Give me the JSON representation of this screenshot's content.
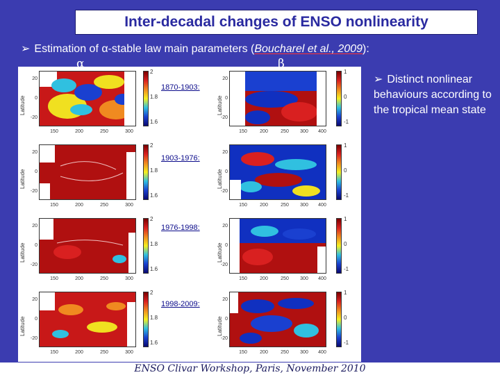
{
  "slide": {
    "title": "Inter-decadal changes of ENSO nonlinearity",
    "bullet_prefix": "Estimation of ",
    "bullet_alpha": "α",
    "bullet_mid": "-stable law main parameters (",
    "bullet_ref": "Boucharel et al., 2009",
    "bullet_end": "):",
    "alpha_label": "α",
    "beta_label": "β",
    "side_note": "Distinct nonlinear behaviours according to the tropical mean state",
    "footer": "ENSO Clivar Workshop, Paris, November 2010"
  },
  "figure": {
    "y_axis_label": "Latitude",
    "y_ticks": [
      "20",
      "0",
      "-20"
    ],
    "x_ticks_alpha": [
      "150",
      "200",
      "250",
      "300"
    ],
    "x_ticks_beta": [
      "150",
      "200",
      "250",
      "300",
      "400"
    ],
    "alpha_cbar_ticks": [
      "2",
      "1.8",
      "1.6"
    ],
    "beta_cbar_ticks": [
      "1",
      "0",
      "-1"
    ],
    "periods": [
      "1870-1903:",
      "1903-1976:",
      "1976-1998:",
      "1998-2009:"
    ]
  },
  "colors": {
    "background": "#3b3cb0",
    "title_text": "#2a2aa0",
    "map_red": "#b01010",
    "map_blue": "#1030c0"
  }
}
